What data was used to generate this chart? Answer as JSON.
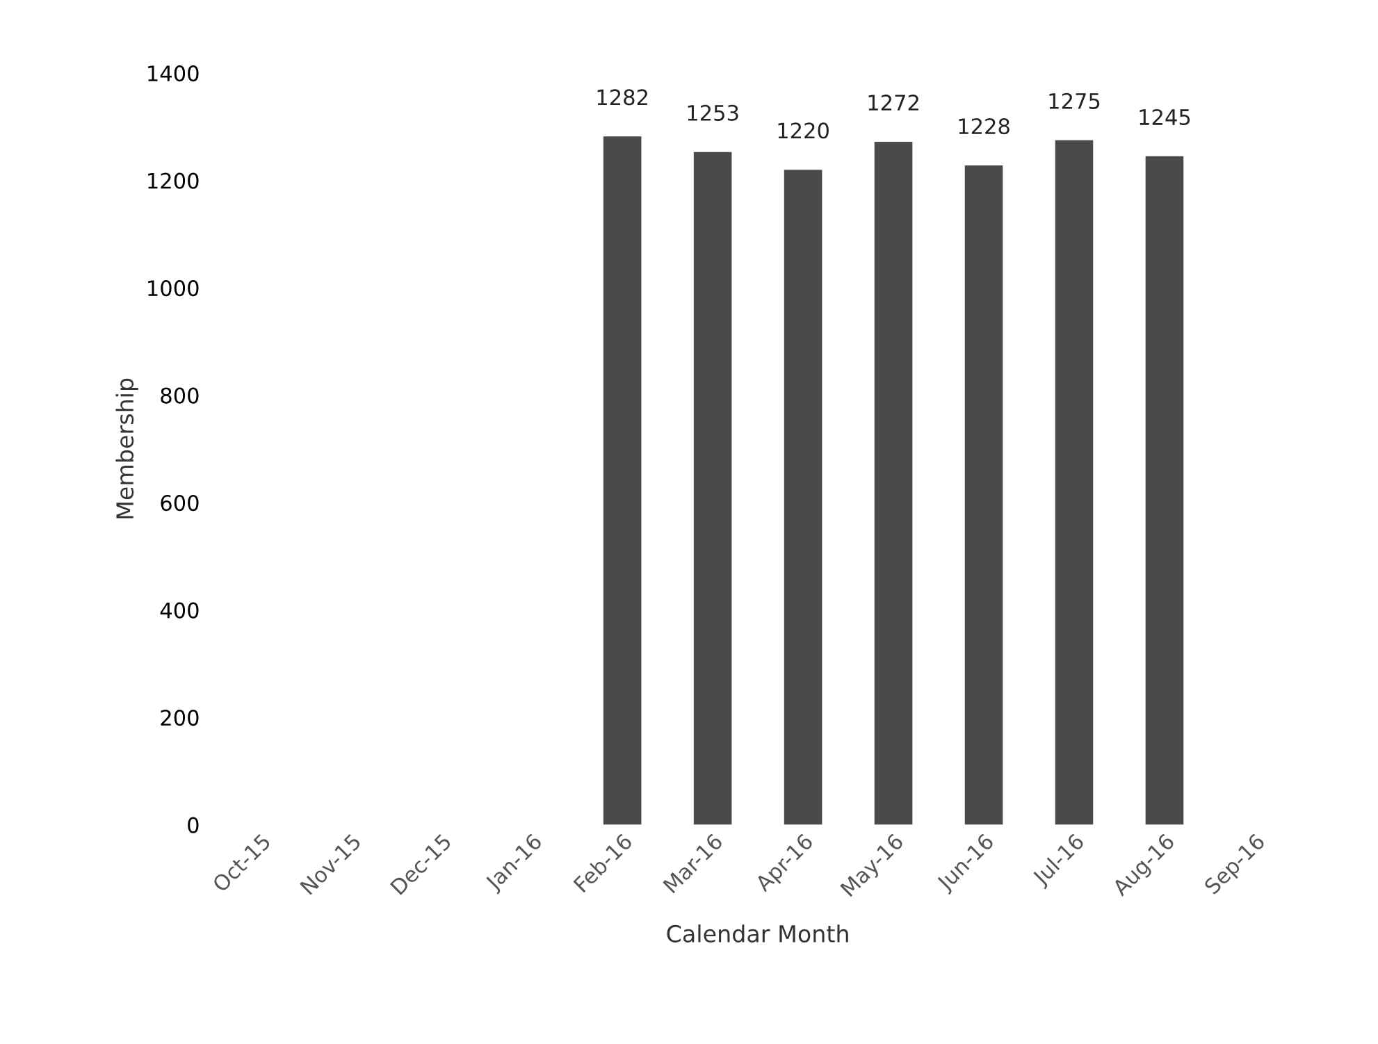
{
  "chart_data": {
    "type": "bar",
    "xlabel": "Calendar Month",
    "ylabel": "Membership",
    "categories": [
      "Oct-15",
      "Nov-15",
      "Dec-15",
      "Jan-16",
      "Feb-16",
      "Mar-16",
      "Apr-16",
      "May-16",
      "Jun-16",
      "Jul-16",
      "Aug-16",
      "Sep-16"
    ],
    "values": [
      null,
      null,
      null,
      null,
      1282,
      1253,
      1220,
      1272,
      1228,
      1275,
      1245,
      null
    ],
    "color": "#4a4a4a",
    "ylim": [
      0,
      1400
    ],
    "yticks": [
      0,
      200,
      400,
      600,
      800,
      1000,
      1200,
      1400
    ],
    "data_labels": true,
    "grid": false
  }
}
